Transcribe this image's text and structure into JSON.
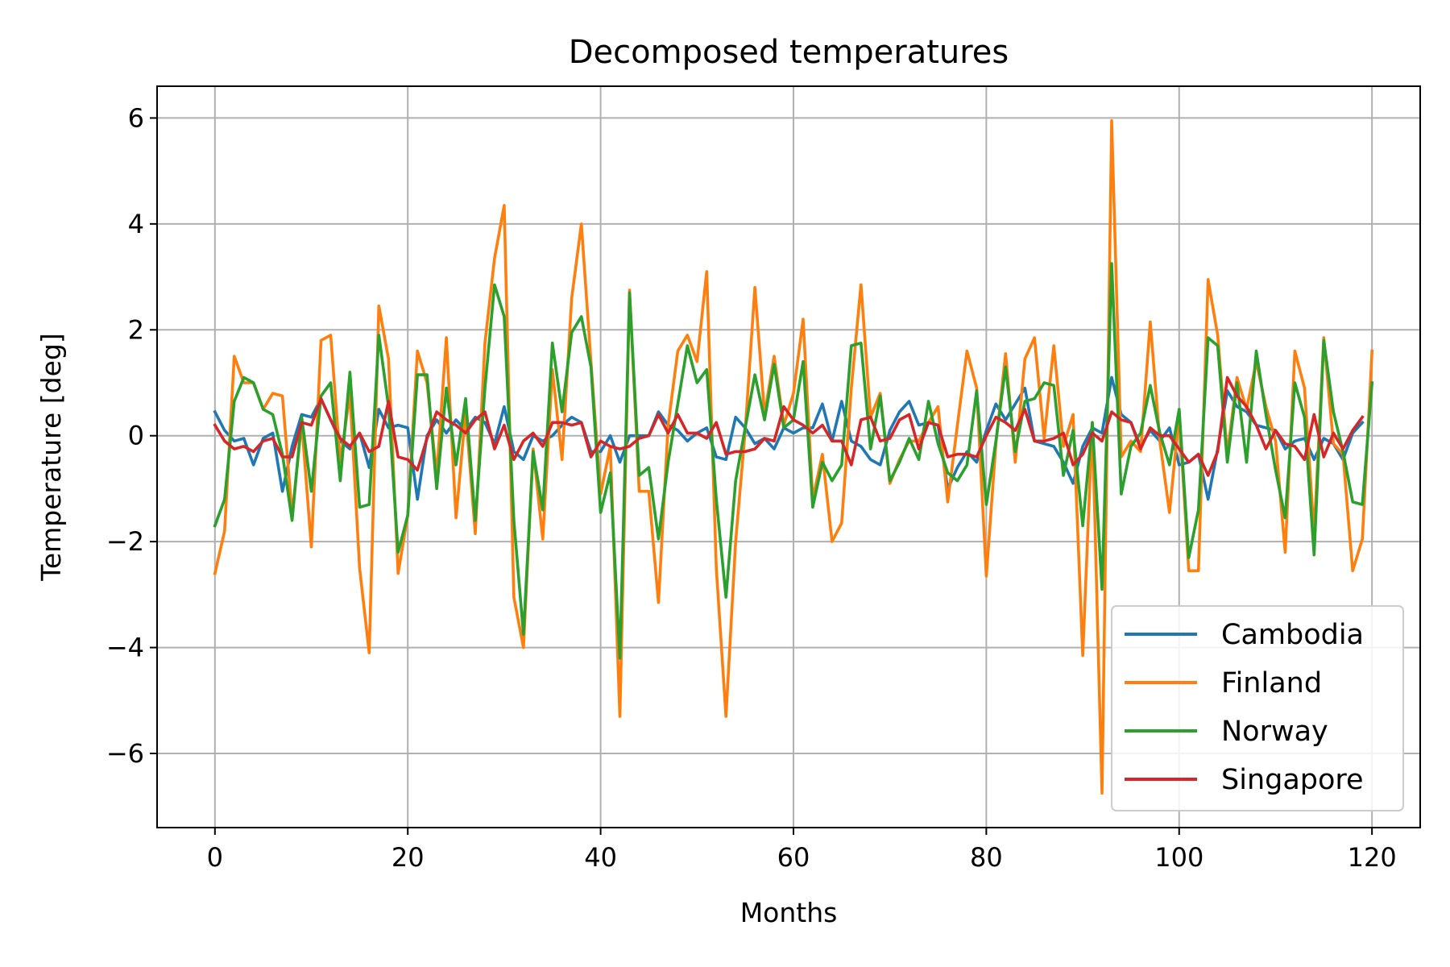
{
  "chart_data": {
    "type": "line",
    "title": "Decomposed temperatures",
    "xlabel": "Months",
    "ylabel": "Temperature [deg]",
    "xlim": [
      -6,
      125
    ],
    "ylim": [
      -7.4,
      6.6
    ],
    "xticks": [
      0,
      20,
      40,
      60,
      80,
      100,
      120
    ],
    "yticks": [
      -6,
      -4,
      -2,
      0,
      2,
      4,
      6
    ],
    "xtick_labels": [
      "0",
      "20",
      "40",
      "60",
      "80",
      "100",
      "120"
    ],
    "ytick_labels": [
      "−6",
      "−4",
      "−2",
      "0",
      "2",
      "4",
      "6"
    ],
    "grid": true,
    "legend_position": "lower-right",
    "series": [
      {
        "name": "Cambodia",
        "color": "#1f77b4",
        "values": [
          0.45,
          0.1,
          -0.1,
          -0.05,
          -0.55,
          -0.05,
          0.05,
          -1.05,
          -0.2,
          0.4,
          0.35,
          0.7,
          0.3,
          -0.1,
          -0.25,
          0.05,
          -0.6,
          0.5,
          0.15,
          0.2,
          0.15,
          -1.2,
          0.0,
          0.3,
          0.05,
          0.3,
          0.1,
          0.35,
          0.25,
          -0.15,
          0.55,
          -0.3,
          -0.45,
          0.0,
          -0.1,
          0.0,
          0.2,
          0.35,
          0.25,
          -0.3,
          -0.3,
          0.0,
          -0.5,
          0.0,
          0.0,
          0.0,
          0.45,
          0.2,
          0.1,
          -0.1,
          0.05,
          0.15,
          -0.4,
          -0.45,
          0.35,
          0.15,
          -0.15,
          -0.05,
          -0.25,
          0.15,
          0.05,
          0.15,
          0.15,
          0.6,
          -0.1,
          0.65,
          -0.1,
          -0.2,
          -0.45,
          -0.55,
          0.1,
          0.45,
          0.65,
          0.2,
          0.25,
          0.2,
          -1.0,
          -0.6,
          -0.3,
          -0.5,
          0.1,
          0.6,
          0.3,
          0.6,
          0.9,
          -0.1,
          -0.15,
          -0.2,
          -0.5,
          -0.9,
          -0.2,
          0.15,
          0.05,
          1.1,
          0.4,
          0.25,
          -0.2,
          0.1,
          -0.1,
          0.15,
          -0.55,
          -0.5,
          -0.35,
          -1.2,
          -0.25,
          0.85,
          0.55,
          0.45,
          0.2,
          0.15,
          0.1,
          -0.25,
          -0.1,
          -0.05,
          -0.45,
          -0.05,
          -0.15,
          -0.45,
          0.05,
          0.25
        ]
      },
      {
        "name": "Finland",
        "color": "#ff7f0e",
        "values": [
          -2.6,
          -1.8,
          1.5,
          1.0,
          1.0,
          0.5,
          0.8,
          0.75,
          -1.5,
          0.25,
          -2.1,
          1.8,
          1.9,
          -0.5,
          0.8,
          -2.5,
          -4.1,
          2.45,
          1.45,
          -2.6,
          -1.5,
          1.6,
          1.0,
          -0.75,
          1.85,
          -1.55,
          0.45,
          -1.85,
          1.75,
          3.35,
          4.35,
          -3.05,
          -4.0,
          -0.25,
          -1.95,
          1.25,
          -0.45,
          2.6,
          4.0,
          1.4,
          -1.1,
          -0.2,
          -5.3,
          2.75,
          -1.05,
          -1.05,
          -3.15,
          0.2,
          1.6,
          1.9,
          1.4,
          3.1,
          -2.5,
          -5.3,
          -2.0,
          0.1,
          2.8,
          0.4,
          1.5,
          0.2,
          0.8,
          2.2,
          -1.2,
          -0.35,
          -2.0,
          -1.65,
          0.9,
          2.85,
          0.35,
          0.8,
          -0.9,
          -0.45,
          -0.1,
          -0.1,
          0.25,
          0.55,
          -1.25,
          0.2,
          1.6,
          0.9,
          -2.65,
          -0.15,
          1.55,
          -0.5,
          1.45,
          1.85,
          -0.05,
          1.7,
          -0.2,
          0.4,
          -4.15,
          0.25,
          -6.75,
          5.95,
          -0.4,
          -0.1,
          -0.3,
          2.15,
          -0.1,
          -1.45,
          0.4,
          -2.55,
          -2.55,
          2.95,
          1.9,
          -0.35,
          1.1,
          0.5,
          1.4,
          0.55,
          -0.1,
          -2.2,
          1.6,
          0.9,
          -1.85,
          1.85,
          -0.15,
          -0.35,
          -2.55,
          -1.95,
          1.6
        ]
      },
      {
        "name": "Norway",
        "color": "#2ca02c",
        "values": [
          -1.7,
          -1.2,
          0.65,
          1.1,
          1.0,
          0.5,
          0.4,
          -0.35,
          -1.6,
          0.35,
          -1.05,
          0.75,
          1.0,
          -0.85,
          1.2,
          -1.35,
          -1.3,
          1.9,
          0.55,
          -2.2,
          -1.5,
          1.15,
          1.15,
          -1.0,
          0.9,
          -0.55,
          0.7,
          -1.6,
          0.9,
          2.85,
          2.25,
          -1.6,
          -3.75,
          -0.3,
          -1.4,
          1.75,
          0.45,
          1.95,
          2.25,
          1.3,
          -1.45,
          -0.7,
          -4.2,
          2.7,
          -0.75,
          -0.6,
          -1.95,
          -0.5,
          0.6,
          1.7,
          1.0,
          1.25,
          -1.2,
          -3.05,
          -0.85,
          0.15,
          1.15,
          0.3,
          1.35,
          0.15,
          0.3,
          1.4,
          -1.35,
          -0.5,
          -0.85,
          -0.55,
          1.7,
          1.75,
          -0.25,
          0.75,
          -0.85,
          -0.5,
          -0.05,
          -0.45,
          0.65,
          -0.15,
          -0.7,
          -0.85,
          -0.55,
          0.85,
          -1.3,
          -0.1,
          1.3,
          -0.3,
          0.65,
          0.7,
          1.0,
          0.95,
          -0.75,
          0.1,
          -1.7,
          0.25,
          -2.9,
          3.25,
          -1.1,
          -0.2,
          0.05,
          0.95,
          0.05,
          -0.55,
          0.5,
          -2.3,
          -1.4,
          1.85,
          1.7,
          -0.5,
          1.0,
          -0.5,
          1.6,
          0.4,
          -0.65,
          -1.55,
          1.0,
          0.35,
          -2.25,
          1.8,
          0.45,
          -0.3,
          -1.25,
          -1.3,
          1.0
        ]
      },
      {
        "name": "Singapore",
        "color": "#d62728",
        "values": [
          0.2,
          -0.1,
          -0.25,
          -0.2,
          -0.3,
          -0.1,
          -0.05,
          -0.4,
          -0.4,
          0.25,
          0.2,
          0.7,
          0.3,
          -0.05,
          -0.2,
          0.05,
          -0.3,
          -0.2,
          0.65,
          -0.4,
          -0.45,
          -0.65,
          -0.05,
          0.45,
          0.3,
          0.2,
          0.05,
          0.3,
          0.45,
          -0.25,
          0.2,
          -0.45,
          -0.1,
          0.05,
          -0.2,
          0.25,
          0.25,
          0.2,
          0.25,
          -0.4,
          -0.1,
          -0.2,
          -0.25,
          -0.2,
          -0.05,
          0.0,
          0.4,
          0.05,
          0.4,
          0.05,
          0.05,
          -0.05,
          0.25,
          -0.35,
          -0.3,
          -0.3,
          -0.25,
          -0.05,
          -0.1,
          0.55,
          0.3,
          0.2,
          0.05,
          0.2,
          -0.1,
          -0.1,
          -0.55,
          0.3,
          0.35,
          -0.1,
          -0.05,
          0.3,
          0.4,
          -0.25,
          0.25,
          0.2,
          -0.4,
          -0.35,
          -0.35,
          -0.4,
          0.0,
          0.35,
          0.25,
          0.1,
          0.5,
          -0.1,
          -0.1,
          -0.05,
          0.05,
          -0.55,
          -0.35,
          0.05,
          -0.1,
          0.45,
          0.3,
          0.25,
          -0.25,
          0.15,
          0.0,
          0.0,
          -0.25,
          -0.5,
          -0.35,
          -0.75,
          -0.3,
          1.1,
          0.75,
          0.55,
          0.2,
          -0.25,
          0.1,
          -0.15,
          -0.2,
          -0.45,
          0.4,
          -0.4,
          0.05,
          -0.25,
          0.1,
          0.35
        ]
      }
    ]
  }
}
